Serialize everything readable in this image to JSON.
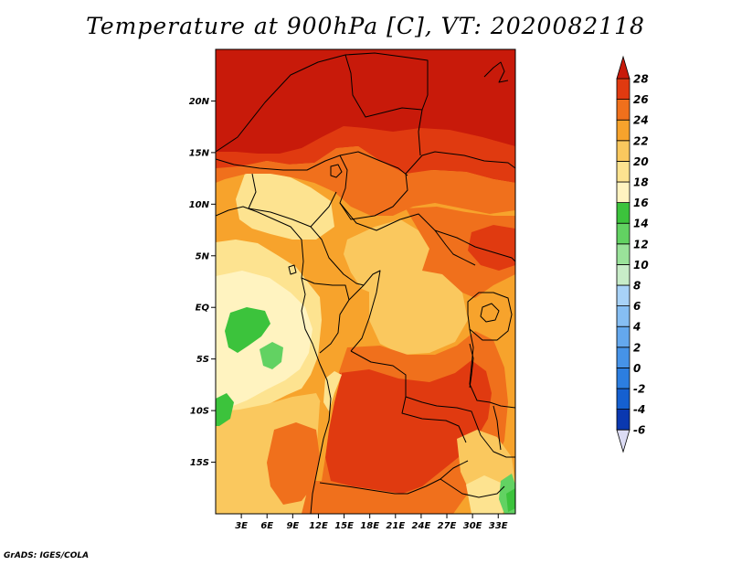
{
  "title": "Temperature at 900hPa [C], VT: 2020082118",
  "credit": "GrADS: IGES/COLA",
  "map": {
    "lon_range": [
      0,
      35
    ],
    "lat_range": [
      -20,
      25
    ],
    "lat_ticks": [
      {
        "value": 20,
        "label": "20N"
      },
      {
        "value": 15,
        "label": "15N"
      },
      {
        "value": 10,
        "label": "10N"
      },
      {
        "value": 5,
        "label": "5N"
      },
      {
        "value": 0,
        "label": "EQ"
      },
      {
        "value": -5,
        "label": "5S"
      },
      {
        "value": -10,
        "label": "10S"
      },
      {
        "value": -15,
        "label": "15S"
      }
    ],
    "lon_ticks": [
      {
        "value": 3,
        "label": "3E"
      },
      {
        "value": 6,
        "label": "6E"
      },
      {
        "value": 9,
        "label": "9E"
      },
      {
        "value": 12,
        "label": "12E"
      },
      {
        "value": 15,
        "label": "15E"
      },
      {
        "value": 18,
        "label": "18E"
      },
      {
        "value": 21,
        "label": "21E"
      },
      {
        "value": 24,
        "label": "24E"
      },
      {
        "value": 27,
        "label": "27E"
      },
      {
        "value": 30,
        "label": "30E"
      },
      {
        "value": 33,
        "label": "33E"
      }
    ]
  },
  "colorbar": {
    "levels": [
      "-6",
      "-4",
      "-2",
      "0",
      "2",
      "4",
      "6",
      "8",
      "10",
      "12",
      "14",
      "16",
      "18",
      "20",
      "22",
      "24",
      "26",
      "28"
    ],
    "colors": [
      "#1a007f",
      "#0a38b0",
      "#1560d0",
      "#2c7ee0",
      "#4693e8",
      "#64a8ee",
      "#86bef3",
      "#a8d2f7",
      "#c8ecc8",
      "#9ae29a",
      "#62d262",
      "#3cc33c",
      "#fff3c0",
      "#fde390",
      "#fac85e",
      "#f7a32c",
      "#f0701c",
      "#e03a10",
      "#c81a0a"
    ],
    "below_color": "#dcdcf4",
    "above_color": "#c81a0a"
  }
}
